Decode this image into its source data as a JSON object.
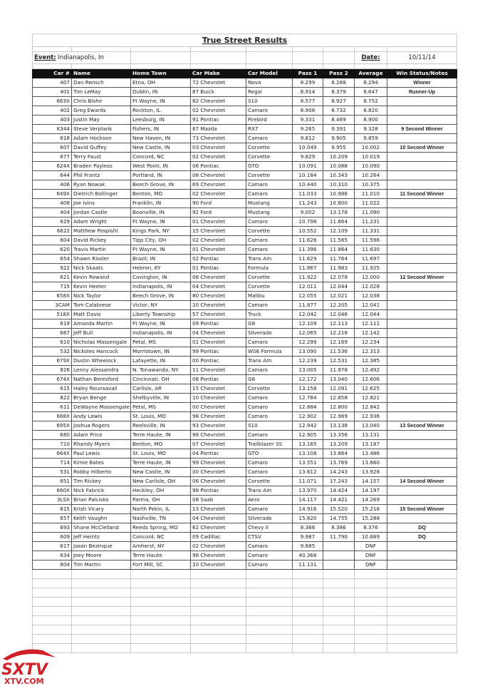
{
  "title": "True Street Results",
  "event": {
    "label": "Event:",
    "value": "Indianapolis, In"
  },
  "date": {
    "label": "Date:",
    "value": "10/11/14"
  },
  "columns": [
    "Car #",
    "Name",
    "Home Town",
    "Car Make",
    "Car Model",
    "Pass 1",
    "Pass 2",
    "Average",
    "Win Status/Notes"
  ],
  "rows": [
    [
      "407",
      "Dan Rensch",
      "Etna, OH",
      "72 Chevrolet",
      "Nova",
      "8.299",
      "8.288",
      "8.294",
      "Winner"
    ],
    [
      "401",
      "Tim LeMay",
      "Dublin, IN",
      "87 Buick",
      "Regal",
      "8.914",
      "8.379",
      "8.647",
      "Runner-Up"
    ],
    [
      "663X",
      "Chris Bishir",
      "Ft Wayne, IN",
      "82 Chevrolet",
      "S10",
      "8.577",
      "8.927",
      "8.752",
      ""
    ],
    [
      "402",
      "Greg Ewards",
      "Rockton, IL",
      "02 Chevrolet",
      "Camaro",
      "8.908",
      "8.732",
      "8.820",
      ""
    ],
    [
      "403",
      "Justin May",
      "Leesburg, IN",
      "91 Pontiac",
      "Firebird",
      "9.331",
      "8.469",
      "8.900",
      ""
    ],
    [
      "K344",
      "Steve Verplank",
      "Fishers, IN",
      "87 Mazda",
      "RX7",
      "9.265",
      "9.391",
      "9.328",
      "9 Second Winner"
    ],
    [
      "618",
      "Adam Hockson",
      "New Haven, IN",
      "73 Chevrolet",
      "Camaro",
      "9.812",
      "9.905",
      "9.859",
      ""
    ],
    [
      "607",
      "David Guffey",
      "New Castle, IN",
      "03 Chevrolet",
      "Corvette",
      "10.049",
      "9.955",
      "10.002",
      "10 Second Winner"
    ],
    [
      "677",
      "Terry Faust",
      "Concord, NC",
      "02 Chevrolet",
      "Corvette",
      "9.829",
      "10.209",
      "10.019",
      ""
    ],
    [
      "624X",
      "Braden Payless",
      "West Point, IN",
      "06 Pontiac",
      "GTO",
      "10.091",
      "10.088",
      "10.090",
      ""
    ],
    [
      "644",
      "Phil Frantz",
      "Portland, IN",
      "08 Chevrolet",
      "Corvette",
      "10.184",
      "10.343",
      "10.264",
      ""
    ],
    [
      "406",
      "Ryan Nowak",
      "Beech Grove, IN",
      "69 Chevrolet",
      "Camaro",
      "10.440",
      "10.310",
      "10.375",
      ""
    ],
    [
      "649X",
      "Dietrich Bollinger",
      "Benton, MO",
      "02 Chevrolet",
      "Camaro",
      "11.033",
      "10.986",
      "11.010",
      "11 Second Winner"
    ],
    [
      "408",
      "Joe Ivins",
      "Franklin, IN",
      "90 Ford",
      "Mustang",
      "11.243",
      "10.800",
      "11.022",
      ""
    ],
    [
      "404",
      "Jordan Castle",
      "Boonville, IN",
      "92 Ford",
      "Mustang",
      "9.002",
      "13.178",
      "11.090",
      ""
    ],
    [
      "629",
      "Adam Wright",
      "Ft Wayne, IN",
      "01 Chevrolet",
      "Camaro",
      "10.798",
      "11.664",
      "11.231",
      ""
    ],
    [
      "6622",
      "Matthew Pospishl",
      "Kings Park, NY",
      "15 Chevrolet",
      "Corvette",
      "10.552",
      "12.109",
      "11.331",
      ""
    ],
    [
      "604",
      "David Rickey",
      "Tipp City, OH",
      "02 Chevrolet",
      "Camaro",
      "11.626",
      "11.565",
      "11.596",
      ""
    ],
    [
      "620",
      "Travis Martin",
      "Ft Wayne, IN",
      "01 Chevrolet",
      "Camaro",
      "11.396",
      "11.864",
      "11.630",
      ""
    ],
    [
      "654",
      "Shawn Rissler",
      "Brazil, IN",
      "02 Pontiac",
      "Trans Am",
      "11.629",
      "11.764",
      "11.697",
      ""
    ],
    [
      "922",
      "Nick Skaats",
      "Hebron, KY",
      "01 Pontiac",
      "Formula",
      "11.867",
      "11.983",
      "11.925",
      ""
    ],
    [
      "621",
      "Kevin Rowand",
      "Covington, IN",
      "08 Chevrolet",
      "Corvette",
      "11.922",
      "12.078",
      "12.000",
      "12 Second Winner"
    ],
    [
      "715",
      "Kevin Heeter",
      "Indianapolis, IN",
      "04 Chevrolet",
      "Corvette",
      "12.011",
      "12.044",
      "12.028",
      ""
    ],
    [
      "658X",
      "Nick Taylor",
      "Beech Grove, IN",
      "80 Chevrolet",
      "Malibu",
      "12.055",
      "12.021",
      "12.038",
      ""
    ],
    [
      "3CAM",
      "Tom Calabrese",
      "Victor, NY",
      "10 Chevrolet",
      "Camaro",
      "11.877",
      "12.205",
      "12.041",
      ""
    ],
    [
      "518X",
      "Matt Davis",
      "Liberty Township",
      "57 Chevrolet",
      "Truck",
      "12.042",
      "12.046",
      "12.044",
      ""
    ],
    [
      "619",
      "Amanda Martin",
      "Ft Wayne, IN",
      "09 Pontiac",
      "G8",
      "12.109",
      "12.113",
      "12.111",
      ""
    ],
    [
      "687",
      "Jeff Bull",
      "Indianapolis, IN",
      "04 Chevrolet",
      "Silverado",
      "12.065",
      "12.218",
      "12.142",
      ""
    ],
    [
      "610",
      "Nicholas Massengale",
      "Petal, MS",
      "01 Chevrolet",
      "Camaro",
      "12.299",
      "12.169",
      "12.234",
      ""
    ],
    [
      "532",
      "Nickoles Hancock",
      "Morristown, IN",
      "99 Pontiac",
      "WS6 Formula",
      "13.090",
      "11.536",
      "12.313",
      ""
    ],
    [
      "679X",
      "Dustin Wheelock",
      "Lafayette, IN",
      "00 Pontiac",
      "Trans Am",
      "12.239",
      "12.531",
      "12.385",
      ""
    ],
    [
      "826",
      "Lenny Alessandra",
      "N. Tonawanda, NY",
      "11 Chevrolet",
      "Camaro",
      "13.005",
      "11.978",
      "12.492",
      ""
    ],
    [
      "674X",
      "Nathan Beresford",
      "Cincinnati, OH",
      "08 Pontiac",
      "G8",
      "12.172",
      "13.040",
      "12.606",
      ""
    ],
    [
      "615",
      "Haley Rounsavall",
      "Carlisle, AR",
      "15 Chevrolet",
      "Corvette",
      "13.158",
      "12.091",
      "12.625",
      ""
    ],
    [
      "822",
      "Bryan Benge",
      "Shelbyville, IN",
      "10 Chevrolet",
      "Camaro",
      "12.784",
      "12.858",
      "12.821",
      ""
    ],
    [
      "611",
      "DeWayne Massengale",
      "Petal, MS",
      "00 Chevrolet",
      "Camaro",
      "12.884",
      "12.800",
      "12.842",
      ""
    ],
    [
      "668X",
      "Andy Lewis",
      "St. Louis, MO",
      "98 Chevrolet",
      "Camaro",
      "12.902",
      "12.969",
      "12.936",
      ""
    ],
    [
      "695X",
      "Joshua Rogers",
      "Reelsville, IN",
      "93 Chevrolet",
      "S10",
      "12.942",
      "13.138",
      "13.040",
      "13 Second Winner"
    ],
    [
      "680",
      "Adam Price",
      "Terre Haute, IN",
      "98 Chevrolet",
      "Camaro",
      "12.905",
      "13.356",
      "13.131",
      ""
    ],
    [
      "710",
      "Rhandy Myers",
      "Benton, MO",
      "07 Chevrolet",
      "Trailblazer SS",
      "13.165",
      "13.209",
      "13.187",
      ""
    ],
    [
      "664X",
      "Paul Lewis",
      "St. Louis, MO",
      "04 Pontiac",
      "GTO",
      "13.108",
      "13.864",
      "13.486",
      ""
    ],
    [
      "714",
      "Kimie Bates",
      "Terre Haute, IN",
      "99 Chevrolet",
      "Camaro",
      "13.551",
      "13.769",
      "13.660",
      ""
    ],
    [
      "531",
      "Robby Hilberto",
      "New Castle, IN",
      "00 Chevrolet",
      "Camaro",
      "13.612",
      "14.243",
      "13.928",
      ""
    ],
    [
      "651",
      "Tim Rickey",
      "New Carlisle, OH",
      "06 Chevrolet",
      "Corvette",
      "11.071",
      "17.243",
      "14.157",
      "14 Second Winner"
    ],
    [
      "660X",
      "Nick Fabrick",
      "Heckley, OH",
      "98 Pontiac",
      "Trans Am",
      "13.970",
      "14.424",
      "14.197",
      ""
    ],
    [
      "3LSX",
      "Brian Palcisko",
      "Parma, OH",
      "08 Saab",
      "Aero",
      "14.117",
      "14.421",
      "14.269",
      ""
    ],
    [
      "815",
      "Kristi Vicary",
      "North Pekin, IL",
      "13 Chevrolet",
      "Camaro",
      "14.916",
      "15.520",
      "15.218",
      "15 Second Winner"
    ],
    [
      "657",
      "Keith Vaughn",
      "Nashville, TN",
      "04 Chevrolet",
      "Silverado",
      "15.820",
      "14.755",
      "15.288",
      ""
    ],
    [
      "693",
      "Shane McClelland",
      "Reeds Spring, MO",
      "62 Chevrolet",
      "Chevy II",
      "8.366",
      "8.386",
      "8.376",
      "DQ"
    ],
    [
      "609",
      "Jeff Heintz",
      "Concord, NC",
      "09 Cadillac",
      "CTSV",
      "9.987",
      "11.790",
      "10.889",
      "DQ"
    ],
    [
      "617",
      "Jason Bezinque",
      "Amherst, NY",
      "02 Chevrolet",
      "Camaro",
      "9.885",
      "",
      "DNF",
      ""
    ],
    [
      "634",
      "Joey Moore",
      "Terre Haute",
      "98 Chevrolet",
      "Camaro",
      "40.368",
      "",
      "DNF",
      ""
    ],
    [
      "804",
      "Tim Martin",
      "Fort Mill, SC",
      "10 Chevrolet",
      "Camaro",
      "11.131",
      "",
      "DNF",
      ""
    ]
  ],
  "logo": {
    "text": "SXTV",
    "subtext": "XTV.COM",
    "color": "#d0202a"
  }
}
